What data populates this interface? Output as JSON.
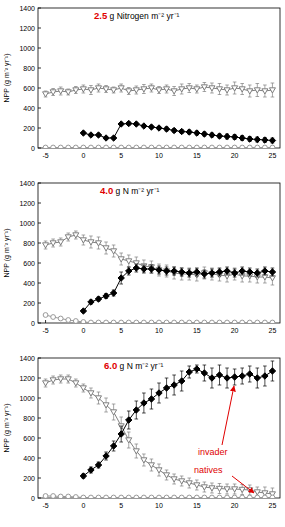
{
  "chart_data": [
    {
      "type": "line",
      "title": "2.5 g Nitrogen m⁻² yr⁻¹",
      "y_label": "NPP (g m⁻² yr⁻¹)",
      "x": [
        -5,
        -4,
        -3,
        -2,
        -1,
        0,
        1,
        2,
        3,
        4,
        5,
        6,
        7,
        8,
        9,
        10,
        11,
        12,
        13,
        14,
        15,
        16,
        17,
        18,
        19,
        20,
        21,
        22,
        23,
        24,
        25
      ],
      "xlim": [
        -6,
        26
      ],
      "xticks": [
        -5,
        0,
        5,
        10,
        15,
        20,
        25
      ],
      "ylim": [
        0,
        1400
      ],
      "yticks": [
        0,
        200,
        400,
        600,
        800,
        1000,
        1200,
        1400
      ],
      "series": [
        {
          "color": "#808080",
          "marker": "triangle-down-open",
          "line_style": "solid",
          "values": [
            540,
            560,
            570,
            560,
            580,
            590,
            580,
            600,
            590,
            580,
            600,
            570,
            580,
            590,
            600,
            580,
            590,
            570,
            590,
            600,
            590,
            610,
            600,
            590,
            580,
            600,
            590,
            570,
            580,
            570,
            580
          ],
          "errors": [
            30,
            35,
            40,
            30,
            35,
            40,
            45,
            40,
            35,
            30,
            40,
            35,
            40,
            45,
            40,
            35,
            40,
            45,
            50,
            45,
            40,
            45,
            50,
            55,
            50,
            60,
            55,
            60,
            65,
            60,
            70
          ]
        },
        {
          "color": "#000000",
          "marker": "diamond",
          "line_style": "solid",
          "values": [
            null,
            null,
            null,
            null,
            null,
            150,
            130,
            130,
            100,
            100,
            240,
            245,
            240,
            220,
            210,
            200,
            190,
            175,
            165,
            160,
            150,
            140,
            130,
            120,
            115,
            110,
            100,
            90,
            85,
            80,
            75
          ],
          "errors": [
            null,
            null,
            null,
            null,
            null,
            10,
            10,
            10,
            10,
            10,
            15,
            15,
            15,
            15,
            15,
            15,
            20,
            20,
            20,
            20,
            20,
            20,
            20,
            20,
            25,
            25,
            25,
            25,
            25,
            25,
            25
          ]
        },
        {
          "color": "#999999",
          "marker": "circle-open",
          "line_style": "solid",
          "values": [
            5,
            5,
            5,
            5,
            5,
            5,
            5,
            5,
            5,
            5,
            5,
            5,
            5,
            5,
            5,
            5,
            5,
            5,
            5,
            5,
            5,
            5,
            5,
            5,
            5,
            5,
            5,
            5,
            5,
            5,
            5
          ],
          "errors": [
            3,
            3,
            3,
            3,
            3,
            3,
            3,
            3,
            3,
            3,
            3,
            3,
            3,
            3,
            3,
            3,
            3,
            3,
            3,
            3,
            3,
            3,
            3,
            3,
            3,
            3,
            3,
            3,
            3,
            3,
            3
          ]
        }
      ]
    },
    {
      "type": "line",
      "title": "4.0 g N m⁻² yr⁻¹",
      "y_label": "NPP (g m⁻² yr⁻¹)",
      "x": [
        -5,
        -4,
        -3,
        -2,
        -1,
        0,
        1,
        2,
        3,
        4,
        5,
        6,
        7,
        8,
        9,
        10,
        11,
        12,
        13,
        14,
        15,
        16,
        17,
        18,
        19,
        20,
        21,
        22,
        23,
        24,
        25
      ],
      "xlim": [
        -6,
        26
      ],
      "xticks": [
        -5,
        0,
        5,
        10,
        15,
        20,
        25
      ],
      "ylim": [
        0,
        1400
      ],
      "yticks": [
        0,
        200,
        400,
        600,
        800,
        1000,
        1200,
        1400
      ],
      "series": [
        {
          "color": "#808080",
          "marker": "triangle-down-open",
          "line_style": "solid",
          "values": [
            780,
            800,
            810,
            860,
            880,
            830,
            810,
            800,
            750,
            720,
            640,
            620,
            600,
            570,
            560,
            530,
            520,
            500,
            490,
            490,
            480,
            500,
            490,
            480,
            470,
            490,
            470,
            470,
            460,
            460,
            450
          ],
          "errors": [
            40,
            40,
            40,
            40,
            40,
            50,
            60,
            60,
            60,
            60,
            60,
            60,
            60,
            60,
            60,
            60,
            60,
            60,
            60,
            60,
            60,
            60,
            60,
            60,
            60,
            60,
            60,
            60,
            60,
            60,
            70
          ]
        },
        {
          "color": "#000000",
          "marker": "diamond",
          "line_style": "solid",
          "values": [
            null,
            null,
            null,
            null,
            null,
            120,
            210,
            240,
            270,
            300,
            450,
            520,
            550,
            540,
            540,
            530,
            520,
            520,
            510,
            500,
            510,
            490,
            500,
            510,
            520,
            500,
            520,
            510,
            500,
            520,
            510
          ],
          "errors": [
            null,
            null,
            null,
            null,
            null,
            15,
            20,
            20,
            25,
            30,
            60,
            40,
            40,
            40,
            40,
            40,
            40,
            40,
            40,
            40,
            40,
            40,
            40,
            40,
            40,
            40,
            40,
            40,
            40,
            40,
            40
          ]
        },
        {
          "color": "#999999",
          "marker": "circle-open",
          "line_style": "solid",
          "values": [
            80,
            60,
            45,
            30,
            20,
            10,
            5,
            5,
            5,
            5,
            5,
            5,
            5,
            5,
            5,
            5,
            5,
            5,
            5,
            5,
            5,
            5,
            5,
            5,
            5,
            5,
            5,
            5,
            5,
            5,
            5
          ],
          "errors": [
            5,
            5,
            5,
            5,
            5,
            5,
            5,
            5,
            5,
            5,
            5,
            5,
            5,
            5,
            5,
            5,
            5,
            5,
            5,
            5,
            5,
            5,
            5,
            5,
            5,
            5,
            5,
            5,
            5,
            5,
            5
          ]
        }
      ]
    },
    {
      "type": "line",
      "title": "6.0 g N m⁻² yr⁻¹",
      "y_label": "NPP (g m⁻² yr⁻¹)",
      "x": [
        -5,
        -4,
        -3,
        -2,
        -1,
        0,
        1,
        2,
        3,
        4,
        5,
        6,
        7,
        8,
        9,
        10,
        11,
        12,
        13,
        14,
        15,
        16,
        17,
        18,
        19,
        20,
        21,
        22,
        23,
        24,
        25
      ],
      "xlim": [
        -6,
        26
      ],
      "xticks": [
        -5,
        0,
        5,
        10,
        15,
        20,
        25
      ],
      "ylim": [
        0,
        1400
      ],
      "yticks": [
        0,
        200,
        400,
        600,
        800,
        1000,
        1200,
        1400
      ],
      "series": [
        {
          "color": "#808080",
          "marker": "triangle-down-open",
          "line_style": "solid",
          "values": [
            1150,
            1180,
            1190,
            1190,
            1150,
            1100,
            1050,
            1000,
            930,
            860,
            720,
            580,
            470,
            380,
            330,
            280,
            230,
            190,
            170,
            150,
            130,
            110,
            100,
            95,
            90,
            90,
            85,
            80,
            60,
            50,
            40
          ],
          "errors": [
            40,
            40,
            40,
            40,
            40,
            40,
            50,
            60,
            70,
            80,
            90,
            80,
            70,
            60,
            60,
            60,
            50,
            50,
            50,
            50,
            50,
            50,
            50,
            50,
            50,
            50,
            50,
            50,
            50,
            60,
            60
          ]
        },
        {
          "color": "#000000",
          "marker": "diamond",
          "line_style": "solid",
          "values": [
            null,
            null,
            null,
            null,
            null,
            220,
            280,
            330,
            420,
            520,
            640,
            780,
            880,
            950,
            990,
            1050,
            1100,
            1130,
            1170,
            1260,
            1290,
            1250,
            1200,
            1230,
            1200,
            1210,
            1220,
            1240,
            1200,
            1220,
            1270
          ],
          "errors": [
            null,
            null,
            null,
            null,
            null,
            20,
            30,
            30,
            40,
            50,
            80,
            90,
            90,
            100,
            100,
            100,
            100,
            100,
            100,
            60,
            40,
            80,
            100,
            100,
            100,
            80,
            80,
            80,
            100,
            100,
            100
          ]
        },
        {
          "color": "#999999",
          "marker": "circle-open",
          "line_style": "solid",
          "values": [
            20,
            20,
            15,
            15,
            10,
            5,
            5,
            5,
            5,
            5,
            5,
            5,
            5,
            5,
            5,
            5,
            5,
            5,
            5,
            5,
            5,
            5,
            5,
            5,
            5,
            5,
            5,
            5,
            5,
            5,
            5
          ],
          "errors": [
            4,
            4,
            4,
            4,
            4,
            4,
            4,
            4,
            4,
            4,
            4,
            4,
            4,
            4,
            4,
            4,
            4,
            4,
            4,
            4,
            4,
            4,
            4,
            4,
            4,
            4,
            4,
            4,
            4,
            4,
            4
          ]
        }
      ],
      "annotations": [
        {
          "text": "invader",
          "color": "#e00000"
        },
        {
          "text": "natives",
          "color": "#e00000"
        }
      ]
    }
  ]
}
